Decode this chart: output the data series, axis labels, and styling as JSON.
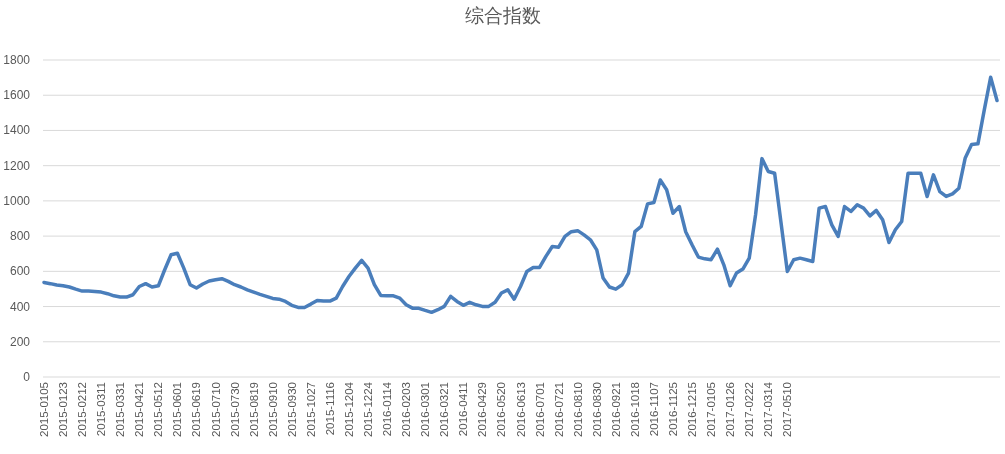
{
  "chart_data": {
    "type": "line",
    "title": "综合指数",
    "categories": [
      "2015-0105",
      null,
      null,
      "2015-0123",
      null,
      null,
      "2015-0212",
      null,
      null,
      "2015-0311",
      null,
      null,
      "2015-0331",
      null,
      null,
      "2015-0421",
      null,
      null,
      "2015-0512",
      null,
      null,
      "2015-0601",
      null,
      null,
      "2015-0619",
      null,
      null,
      "2015-0710",
      null,
      null,
      "2015-0730",
      null,
      null,
      "2015-0819",
      null,
      null,
      "2015-0910",
      null,
      null,
      "2015-0930",
      null,
      null,
      "2015-1027",
      null,
      null,
      "2015-1116",
      null,
      null,
      "2015-1204",
      null,
      null,
      "2015-1224",
      null,
      null,
      "2016-0114",
      null,
      null,
      "2016-0203",
      null,
      null,
      "2016-0301",
      null,
      null,
      "2016-0321",
      null,
      null,
      "2016-0411",
      null,
      null,
      "2016-0429",
      null,
      null,
      "2016-0520",
      null,
      null,
      "2016-0613",
      null,
      null,
      "2016-0701",
      null,
      null,
      "2016-0721",
      null,
      null,
      "2016-0810",
      null,
      null,
      "2016-0830",
      null,
      null,
      "2016-0921",
      null,
      null,
      "2016-1018",
      null,
      null,
      "2016-1107",
      null,
      null,
      "2016-1125",
      null,
      null,
      "2016-1215",
      null,
      null,
      "2017-0105",
      null,
      null,
      "2017-0126",
      null,
      null,
      "2017-0222",
      null,
      null,
      "2017-0314",
      null,
      null,
      "2017-0510",
      null,
      null,
      null,
      null,
      null,
      null,
      null,
      null,
      null,
      null,
      null,
      null,
      null,
      null,
      null,
      null,
      null,
      null,
      null,
      null,
      null,
      null,
      null,
      null,
      null,
      null,
      null,
      null,
      null,
      null,
      null,
      null,
      null
    ],
    "values": [
      537,
      530,
      522,
      518,
      511,
      499,
      488,
      488,
      486,
      482,
      473,
      461,
      454,
      454,
      467,
      514,
      530,
      511,
      518,
      609,
      694,
      703,
      618,
      524,
      505,
      528,
      545,
      552,
      558,
      543,
      524,
      511,
      495,
      482,
      469,
      458,
      446,
      442,
      429,
      407,
      395,
      395,
      414,
      435,
      431,
      431,
      448,
      514,
      571,
      618,
      662,
      618,
      524,
      463,
      461,
      461,
      448,
      410,
      391,
      390,
      378,
      367,
      382,
      401,
      458,
      429,
      407,
      424,
      410,
      401,
      401,
      424,
      477,
      495,
      442,
      514,
      599,
      622,
      622,
      685,
      741,
      737,
      798,
      825,
      831,
      807,
      779,
      722,
      562,
      511,
      499,
      524,
      590,
      825,
      855,
      983,
      991,
      1119,
      1063,
      930,
      968,
      825,
      751,
      681,
      671,
      666,
      726,
      637,
      518,
      590,
      613,
      675,
      921,
      1240,
      1167,
      1157,
      877,
      599,
      666,
      675,
      666,
      656,
      959,
      968,
      864,
      798,
      968,
      940,
      978,
      959,
      915,
      946,
      893,
      764,
      836,
      883,
      1157,
      1157,
      1157,
      1025,
      1148,
      1053,
      1025,
      1040,
      1072,
      1244,
      1320,
      1324,
      1517,
      1702,
      1570
    ],
    "color": "#4a7ebb",
    "ylim": [
      0,
      1800
    ],
    "yticks": [
      0,
      200,
      400,
      600,
      800,
      1000,
      1200,
      1400,
      1600,
      1800
    ],
    "grid": "y"
  }
}
